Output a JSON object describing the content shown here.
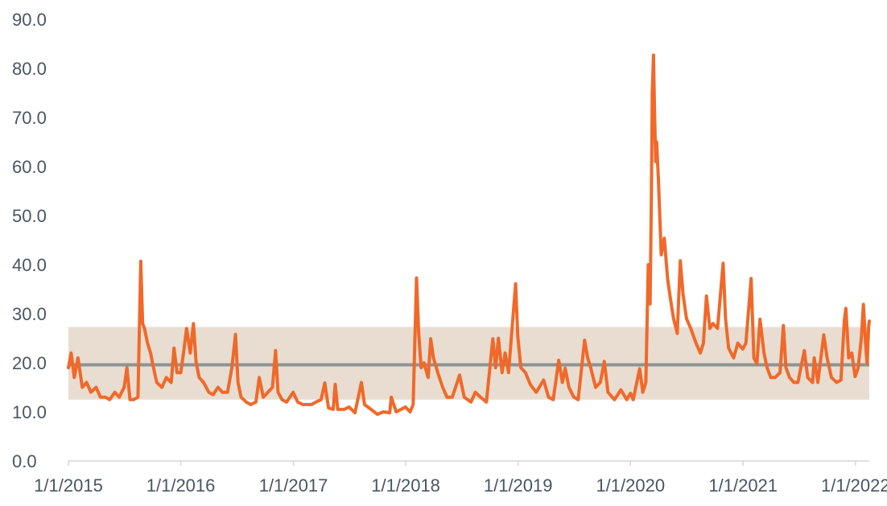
{
  "chart_data": {
    "type": "line",
    "title": "",
    "xlabel": "",
    "ylabel": "",
    "ylim": [
      0,
      90
    ],
    "xlim": [
      "2015-01-01",
      "2022-02-15"
    ],
    "grid": false,
    "legend": "none",
    "y_ticks": [
      "0.0",
      "10.0",
      "20.0",
      "30.0",
      "40.0",
      "50.0",
      "60.0",
      "70.0",
      "80.0",
      "90.0"
    ],
    "x_ticks": [
      {
        "date": "2015-01-01",
        "label": "1/1/2015"
      },
      {
        "date": "2016-01-01",
        "label": "1/1/2016"
      },
      {
        "date": "2017-01-01",
        "label": "1/1/2017"
      },
      {
        "date": "2018-01-01",
        "label": "1/1/2018"
      },
      {
        "date": "2019-01-01",
        "label": "1/1/2019"
      },
      {
        "date": "2020-01-01",
        "label": "1/1/2020"
      },
      {
        "date": "2021-01-01",
        "label": "1/1/2021"
      },
      {
        "date": "2022-01-01",
        "label": "1/1/2022"
      }
    ],
    "band": {
      "low": 12.5,
      "high": 27.3,
      "color": "#e8ddd0"
    },
    "reference_line": {
      "value": 19.6,
      "color": "#8c9494"
    },
    "series": [
      {
        "color": "#f0692a",
        "points": [
          [
            "2015-01-01",
            19
          ],
          [
            "2015-01-10",
            22
          ],
          [
            "2015-01-20",
            17
          ],
          [
            "2015-02-01",
            21
          ],
          [
            "2015-02-15",
            15
          ],
          [
            "2015-03-01",
            16
          ],
          [
            "2015-03-15",
            14
          ],
          [
            "2015-04-01",
            15
          ],
          [
            "2015-04-15",
            13
          ],
          [
            "2015-05-01",
            13
          ],
          [
            "2015-05-15",
            12.5
          ],
          [
            "2015-06-01",
            14
          ],
          [
            "2015-06-15",
            13
          ],
          [
            "2015-07-01",
            15
          ],
          [
            "2015-07-10",
            19
          ],
          [
            "2015-07-20",
            12.5
          ],
          [
            "2015-08-01",
            12.5
          ],
          [
            "2015-08-15",
            13
          ],
          [
            "2015-08-24",
            40.7
          ],
          [
            "2015-08-30",
            28
          ],
          [
            "2015-09-05",
            27
          ],
          [
            "2015-09-15",
            24
          ],
          [
            "2015-09-25",
            22
          ],
          [
            "2015-10-01",
            20
          ],
          [
            "2015-10-15",
            16
          ],
          [
            "2015-11-01",
            15
          ],
          [
            "2015-11-15",
            17
          ],
          [
            "2015-12-01",
            16
          ],
          [
            "2015-12-10",
            23
          ],
          [
            "2015-12-20",
            18
          ],
          [
            "2016-01-01",
            18
          ],
          [
            "2016-01-10",
            22
          ],
          [
            "2016-01-20",
            27
          ],
          [
            "2016-02-01",
            22
          ],
          [
            "2016-02-11",
            28
          ],
          [
            "2016-02-20",
            20
          ],
          [
            "2016-03-01",
            17
          ],
          [
            "2016-03-15",
            16
          ],
          [
            "2016-04-01",
            14
          ],
          [
            "2016-04-15",
            13.5
          ],
          [
            "2016-05-01",
            15
          ],
          [
            "2016-05-15",
            14
          ],
          [
            "2016-06-01",
            14
          ],
          [
            "2016-06-15",
            19
          ],
          [
            "2016-06-27",
            25.8
          ],
          [
            "2016-07-05",
            16
          ],
          [
            "2016-07-15",
            13
          ],
          [
            "2016-08-01",
            12
          ],
          [
            "2016-08-15",
            11.5
          ],
          [
            "2016-09-01",
            12
          ],
          [
            "2016-09-12",
            17
          ],
          [
            "2016-09-25",
            13
          ],
          [
            "2016-10-10",
            14
          ],
          [
            "2016-10-25",
            15
          ],
          [
            "2016-11-04",
            22.5
          ],
          [
            "2016-11-12",
            14
          ],
          [
            "2016-11-25",
            12.5
          ],
          [
            "2016-12-10",
            12
          ],
          [
            "2016-12-31",
            14
          ],
          [
            "2017-01-15",
            12
          ],
          [
            "2017-02-01",
            11.5
          ],
          [
            "2017-02-15",
            11.5
          ],
          [
            "2017-03-01",
            11.5
          ],
          [
            "2017-03-15",
            12
          ],
          [
            "2017-04-01",
            12.5
          ],
          [
            "2017-04-13",
            15.9
          ],
          [
            "2017-04-25",
            10.8
          ],
          [
            "2017-05-10",
            10.5
          ],
          [
            "2017-05-17",
            15.6
          ],
          [
            "2017-05-25",
            10.5
          ],
          [
            "2017-06-15",
            10.5
          ],
          [
            "2017-07-01",
            11
          ],
          [
            "2017-07-20",
            9.8
          ],
          [
            "2017-08-10",
            16
          ],
          [
            "2017-08-20",
            11.5
          ],
          [
            "2017-09-10",
            10.5
          ],
          [
            "2017-10-01",
            9.5
          ],
          [
            "2017-10-20",
            10
          ],
          [
            "2017-11-10",
            9.8
          ],
          [
            "2017-11-15",
            13
          ],
          [
            "2017-12-01",
            10
          ],
          [
            "2017-12-31",
            11
          ],
          [
            "2018-01-15",
            10
          ],
          [
            "2018-01-25",
            11.5
          ],
          [
            "2018-02-05",
            37.3
          ],
          [
            "2018-02-12",
            26
          ],
          [
            "2018-02-20",
            19
          ],
          [
            "2018-03-01",
            20
          ],
          [
            "2018-03-15",
            17
          ],
          [
            "2018-03-23",
            24.9
          ],
          [
            "2018-04-01",
            21
          ],
          [
            "2018-04-15",
            18
          ],
          [
            "2018-05-01",
            15
          ],
          [
            "2018-05-15",
            13
          ],
          [
            "2018-06-01",
            13
          ],
          [
            "2018-06-25",
            17.5
          ],
          [
            "2018-07-10",
            13
          ],
          [
            "2018-08-01",
            12
          ],
          [
            "2018-08-15",
            14
          ],
          [
            "2018-09-01",
            13
          ],
          [
            "2018-09-20",
            12
          ],
          [
            "2018-10-11",
            24.9
          ],
          [
            "2018-10-20",
            19
          ],
          [
            "2018-10-29",
            25
          ],
          [
            "2018-11-10",
            18
          ],
          [
            "2018-11-20",
            22
          ],
          [
            "2018-12-01",
            18
          ],
          [
            "2018-12-24",
            36.1
          ],
          [
            "2018-12-31",
            25.4
          ],
          [
            "2019-01-10",
            19
          ],
          [
            "2019-01-25",
            18
          ],
          [
            "2019-02-10",
            15.5
          ],
          [
            "2019-03-01",
            14
          ],
          [
            "2019-03-25",
            16.5
          ],
          [
            "2019-04-10",
            13
          ],
          [
            "2019-04-25",
            12.5
          ],
          [
            "2019-05-13",
            20.5
          ],
          [
            "2019-05-25",
            16
          ],
          [
            "2019-06-03",
            18.9
          ],
          [
            "2019-06-15",
            15
          ],
          [
            "2019-07-01",
            13
          ],
          [
            "2019-07-15",
            12.5
          ],
          [
            "2019-08-05",
            24.6
          ],
          [
            "2019-08-15",
            21
          ],
          [
            "2019-08-25",
            19
          ],
          [
            "2019-09-10",
            15
          ],
          [
            "2019-09-25",
            16
          ],
          [
            "2019-10-08",
            20.3
          ],
          [
            "2019-10-20",
            14
          ],
          [
            "2019-11-10",
            12.5
          ],
          [
            "2019-12-01",
            14.5
          ],
          [
            "2019-12-20",
            12.5
          ],
          [
            "2020-01-01",
            13.8
          ],
          [
            "2020-01-10",
            12.5
          ],
          [
            "2020-01-31",
            18.8
          ],
          [
            "2020-02-10",
            14
          ],
          [
            "2020-02-20",
            16
          ],
          [
            "2020-02-28",
            40
          ],
          [
            "2020-03-05",
            32
          ],
          [
            "2020-03-09",
            54
          ],
          [
            "2020-03-12",
            75
          ],
          [
            "2020-03-16",
            82.7
          ],
          [
            "2020-03-19",
            72
          ],
          [
            "2020-03-23",
            61
          ],
          [
            "2020-03-26",
            65
          ],
          [
            "2020-04-01",
            57
          ],
          [
            "2020-04-10",
            42
          ],
          [
            "2020-04-20",
            45.4
          ],
          [
            "2020-05-01",
            37
          ],
          [
            "2020-05-10",
            33
          ],
          [
            "2020-05-20",
            29
          ],
          [
            "2020-06-01",
            26
          ],
          [
            "2020-06-11",
            40.8
          ],
          [
            "2020-06-20",
            34
          ],
          [
            "2020-07-01",
            29
          ],
          [
            "2020-07-15",
            27
          ],
          [
            "2020-08-01",
            24
          ],
          [
            "2020-08-15",
            22
          ],
          [
            "2020-08-25",
            24
          ],
          [
            "2020-09-04",
            33.6
          ],
          [
            "2020-09-15",
            27
          ],
          [
            "2020-09-25",
            28
          ],
          [
            "2020-10-10",
            27
          ],
          [
            "2020-10-28",
            40.3
          ],
          [
            "2020-11-05",
            29
          ],
          [
            "2020-11-15",
            23
          ],
          [
            "2020-12-01",
            21
          ],
          [
            "2020-12-15",
            24
          ],
          [
            "2020-12-31",
            22.8
          ],
          [
            "2021-01-10",
            24
          ],
          [
            "2021-01-27",
            37.2
          ],
          [
            "2021-02-05",
            21
          ],
          [
            "2021-02-15",
            19.8
          ],
          [
            "2021-02-25",
            28.9
          ],
          [
            "2021-03-10",
            22
          ],
          [
            "2021-03-20",
            19
          ],
          [
            "2021-04-01",
            17
          ],
          [
            "2021-04-15",
            17
          ],
          [
            "2021-05-01",
            18
          ],
          [
            "2021-05-12",
            27.6
          ],
          [
            "2021-05-20",
            19
          ],
          [
            "2021-06-01",
            17
          ],
          [
            "2021-06-15",
            16
          ],
          [
            "2021-06-28",
            16
          ],
          [
            "2021-07-19",
            22.5
          ],
          [
            "2021-07-30",
            17
          ],
          [
            "2021-08-15",
            16
          ],
          [
            "2021-08-20",
            21
          ],
          [
            "2021-09-01",
            16
          ],
          [
            "2021-09-20",
            25.7
          ],
          [
            "2021-10-01",
            21
          ],
          [
            "2021-10-15",
            17
          ],
          [
            "2021-11-01",
            16
          ],
          [
            "2021-11-15",
            16.5
          ],
          [
            "2021-11-26",
            28.6
          ],
          [
            "2021-12-01",
            31.1
          ],
          [
            "2021-12-10",
            21
          ],
          [
            "2021-12-20",
            22
          ],
          [
            "2021-12-31",
            17.2
          ],
          [
            "2022-01-10",
            19
          ],
          [
            "2022-01-20",
            25
          ],
          [
            "2022-01-27",
            31.9
          ],
          [
            "2022-02-03",
            24
          ],
          [
            "2022-02-08",
            19.8
          ],
          [
            "2022-02-13",
            27.4
          ],
          [
            "2022-02-15",
            28.5
          ]
        ]
      }
    ]
  }
}
